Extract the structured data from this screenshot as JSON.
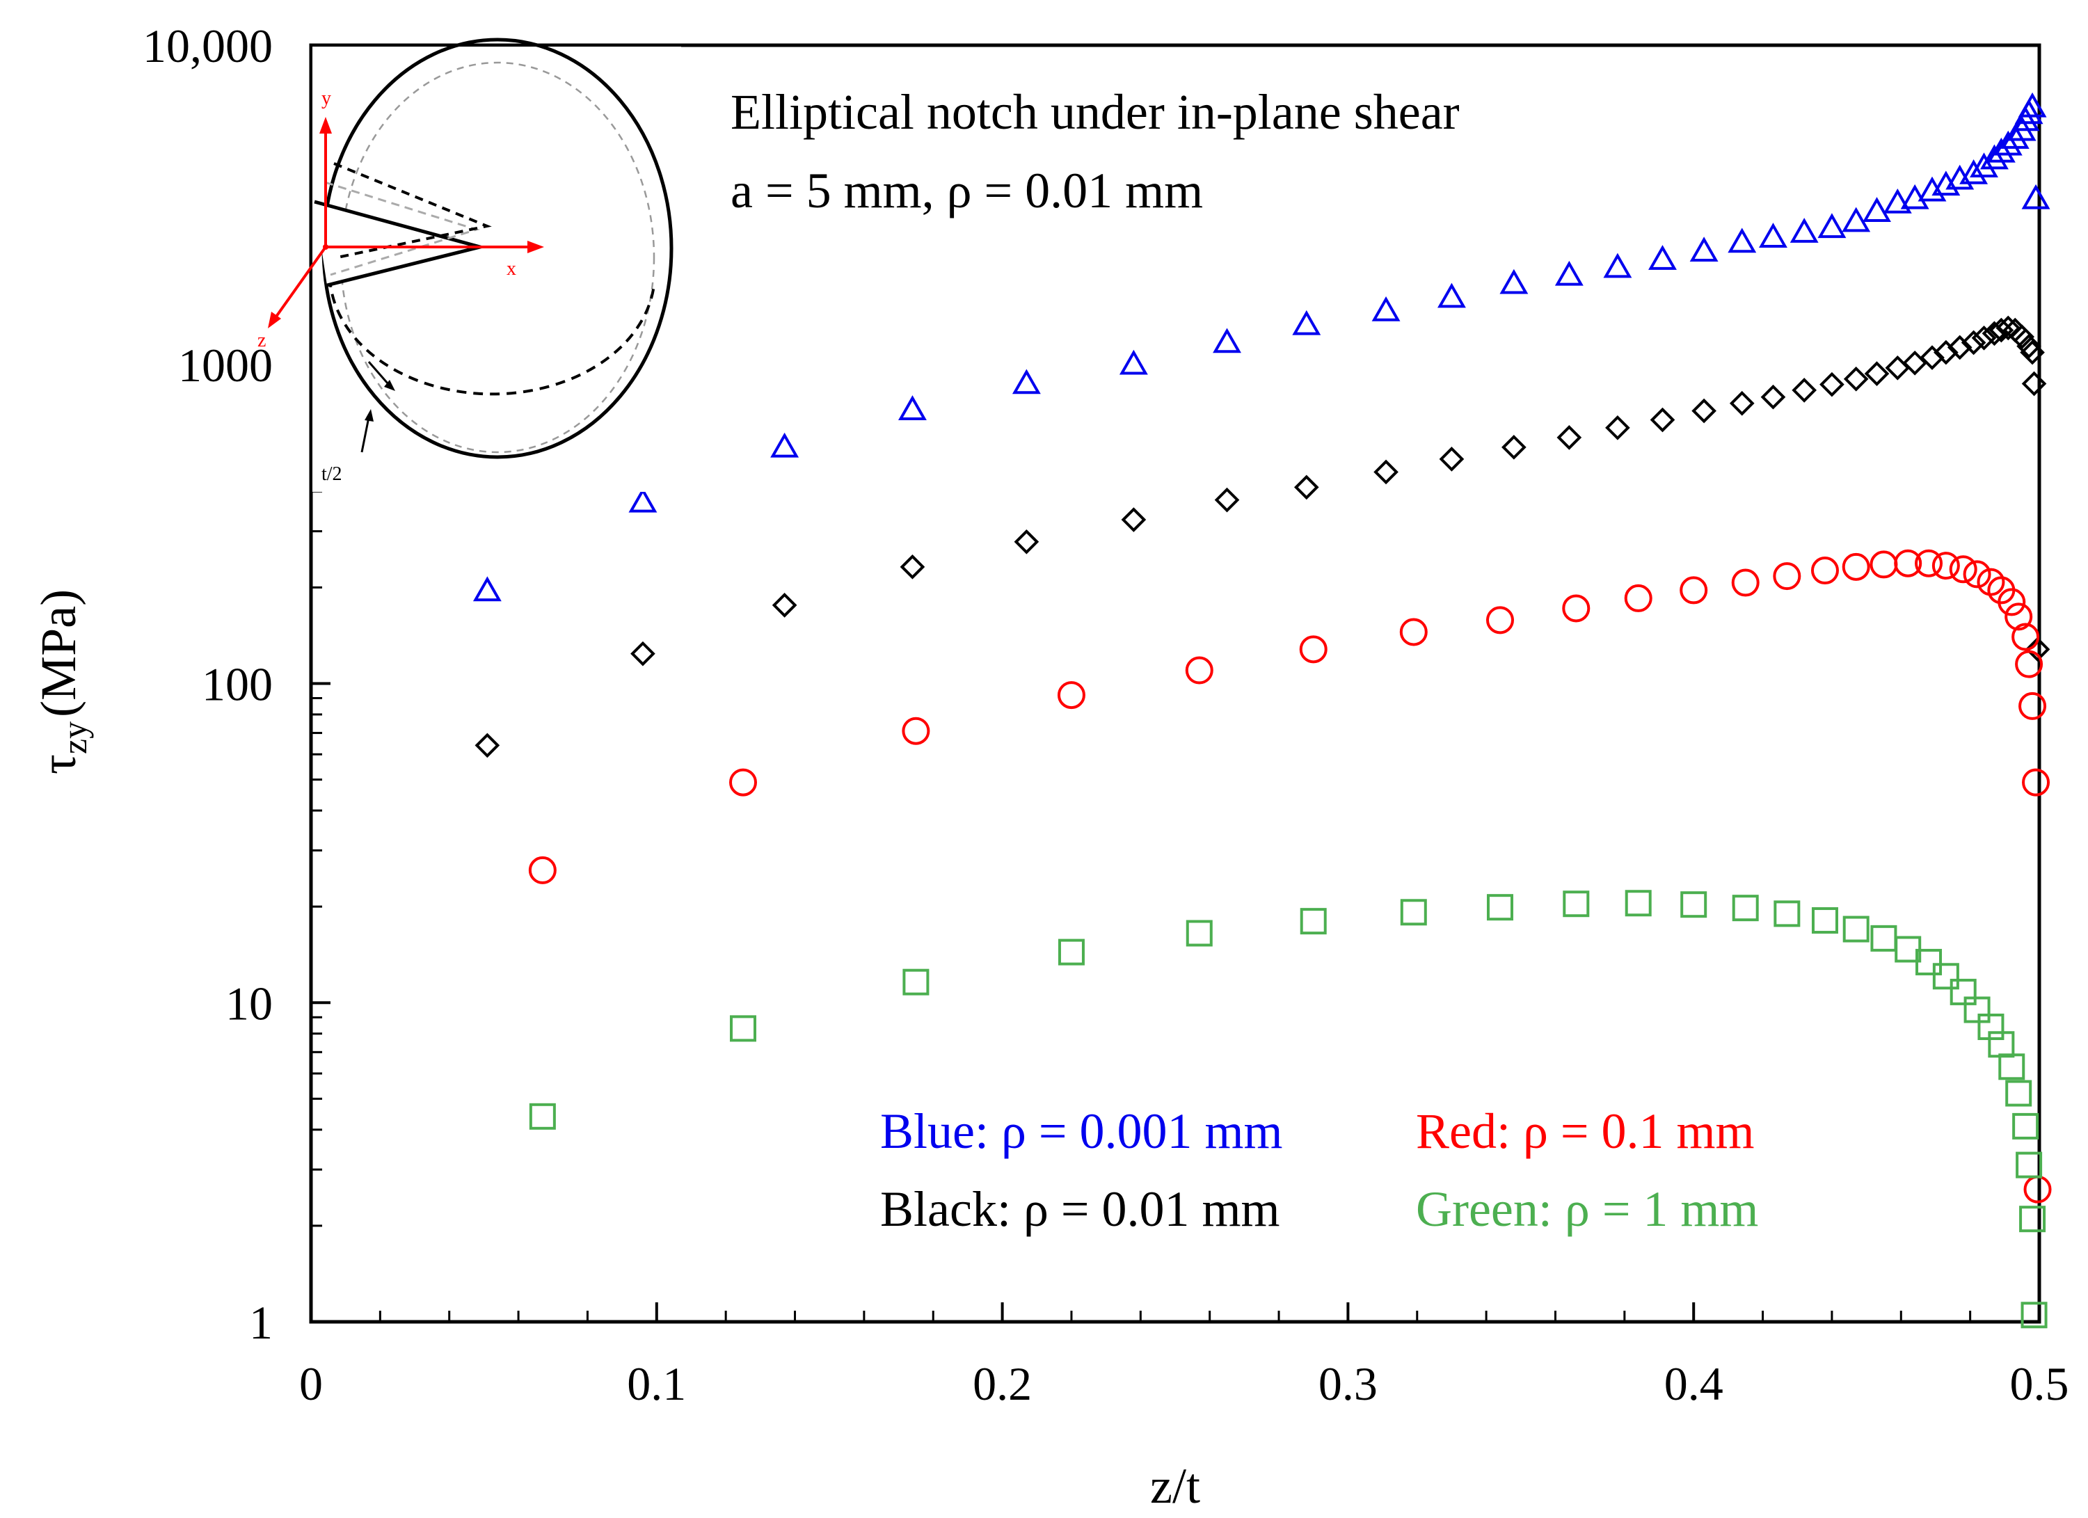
{
  "chart_data": {
    "type": "scatter",
    "title": "",
    "xlabel": "z/t",
    "ylabel": {
      "symbol": "τ",
      "subscript": "zy",
      "unit": "(MPa)"
    },
    "xlim": [
      0,
      0.5
    ],
    "ylim": [
      1,
      10000
    ],
    "yscale": "log",
    "grid": false,
    "x_ticks": [
      "0",
      "0.1",
      "0.2",
      "0.3",
      "0.4",
      "0.5"
    ],
    "x_tick_values": [
      0,
      0.1,
      0.2,
      0.3,
      0.4,
      0.5
    ],
    "x_minor_ticks": [
      0.02,
      0.04,
      0.06,
      0.08,
      0.12,
      0.14,
      0.16,
      0.18,
      0.22,
      0.24,
      0.26,
      0.28,
      0.32,
      0.34,
      0.36,
      0.38,
      0.42,
      0.44,
      0.46,
      0.48
    ],
    "y_ticks": [
      "1",
      "10",
      "100",
      "1000",
      "10,000"
    ],
    "y_tick_values": [
      1,
      10,
      100,
      1000,
      10000
    ],
    "annotations": {
      "line1": "Elliptical notch under in-plane shear",
      "line2": "a = 5 mm, ρ = 0.01 mm"
    },
    "legend": {
      "placement": "bottom-right",
      "blue": "Blue: ρ = 0.001 mm",
      "red": "Red: ρ = 0.1 mm",
      "black": "Black: ρ = 0.01 mm",
      "green": "Green: ρ = 1 mm"
    },
    "series": [
      {
        "name": "Blue: ρ = 0.001 mm",
        "color": "#0000ee",
        "marker": "triangle",
        "points": [
          [
            0.051,
            195
          ],
          [
            0.096,
            370
          ],
          [
            0.137,
            550
          ],
          [
            0.174,
            720
          ],
          [
            0.207,
            870
          ],
          [
            0.238,
            1000
          ],
          [
            0.265,
            1170
          ],
          [
            0.288,
            1330
          ],
          [
            0.311,
            1470
          ],
          [
            0.33,
            1620
          ],
          [
            0.348,
            1790
          ],
          [
            0.364,
            1900
          ],
          [
            0.378,
            2010
          ],
          [
            0.391,
            2130
          ],
          [
            0.403,
            2260
          ],
          [
            0.414,
            2410
          ],
          [
            0.423,
            2500
          ],
          [
            0.432,
            2590
          ],
          [
            0.44,
            2680
          ],
          [
            0.447,
            2800
          ],
          [
            0.453,
            3010
          ],
          [
            0.459,
            3200
          ],
          [
            0.464,
            3300
          ],
          [
            0.469,
            3490
          ],
          [
            0.473,
            3640
          ],
          [
            0.477,
            3800
          ],
          [
            0.481,
            3950
          ],
          [
            0.484,
            4150
          ],
          [
            0.487,
            4400
          ],
          [
            0.489,
            4620
          ],
          [
            0.491,
            4860
          ],
          [
            0.493,
            5100
          ],
          [
            0.495,
            5400
          ],
          [
            0.496,
            5800
          ],
          [
            0.497,
            6100
          ],
          [
            0.498,
            6400
          ],
          [
            0.499,
            3300
          ]
        ]
      },
      {
        "name": "Black: ρ = 0.01 mm",
        "color": "#000000",
        "marker": "diamond",
        "points": [
          [
            0.051,
            64
          ],
          [
            0.096,
            124
          ],
          [
            0.137,
            176
          ],
          [
            0.174,
            232
          ],
          [
            0.207,
            278
          ],
          [
            0.238,
            326
          ],
          [
            0.265,
            376
          ],
          [
            0.288,
            412
          ],
          [
            0.311,
            460
          ],
          [
            0.33,
            505
          ],
          [
            0.348,
            550
          ],
          [
            0.364,
            590
          ],
          [
            0.378,
            633
          ],
          [
            0.391,
            670
          ],
          [
            0.403,
            715
          ],
          [
            0.414,
            755
          ],
          [
            0.423,
            790
          ],
          [
            0.432,
            830
          ],
          [
            0.44,
            865
          ],
          [
            0.447,
            900
          ],
          [
            0.453,
            935
          ],
          [
            0.459,
            975
          ],
          [
            0.464,
            1010
          ],
          [
            0.469,
            1050
          ],
          [
            0.473,
            1090
          ],
          [
            0.477,
            1130
          ],
          [
            0.481,
            1170
          ],
          [
            0.484,
            1210
          ],
          [
            0.487,
            1250
          ],
          [
            0.489,
            1280
          ],
          [
            0.491,
            1300
          ],
          [
            0.493,
            1280
          ],
          [
            0.495,
            1220
          ],
          [
            0.497,
            1140
          ],
          [
            0.498,
            1090
          ],
          [
            0.4985,
            870
          ],
          [
            0.4995,
            128
          ]
        ]
      },
      {
        "name": "Red: ρ = 0.1 mm",
        "color": "#ff0000",
        "marker": "circle",
        "points": [
          [
            0.067,
            26
          ],
          [
            0.125,
            49
          ],
          [
            0.175,
            71
          ],
          [
            0.22,
            92
          ],
          [
            0.257,
            110
          ],
          [
            0.29,
            128
          ],
          [
            0.319,
            145
          ],
          [
            0.344,
            158
          ],
          [
            0.366,
            172
          ],
          [
            0.384,
            185
          ],
          [
            0.4,
            196
          ],
          [
            0.415,
            207
          ],
          [
            0.427,
            217
          ],
          [
            0.438,
            226
          ],
          [
            0.447,
            232
          ],
          [
            0.455,
            236
          ],
          [
            0.462,
            238
          ],
          [
            0.468,
            238
          ],
          [
            0.473,
            234
          ],
          [
            0.478,
            228
          ],
          [
            0.482,
            220
          ],
          [
            0.486,
            208
          ],
          [
            0.489,
            196
          ],
          [
            0.492,
            180
          ],
          [
            0.494,
            162
          ],
          [
            0.496,
            140
          ],
          [
            0.497,
            115
          ],
          [
            0.498,
            85
          ],
          [
            0.499,
            49
          ],
          [
            0.4995,
            2.6
          ]
        ]
      },
      {
        "name": "Green: ρ = 1 mm",
        "color": "#4caf50",
        "marker": "square",
        "points": [
          [
            0.067,
            4.4
          ],
          [
            0.125,
            8.3
          ],
          [
            0.175,
            11.6
          ],
          [
            0.22,
            14.4
          ],
          [
            0.257,
            16.5
          ],
          [
            0.29,
            18
          ],
          [
            0.319,
            19.2
          ],
          [
            0.344,
            19.9
          ],
          [
            0.366,
            20.4
          ],
          [
            0.384,
            20.5
          ],
          [
            0.4,
            20.3
          ],
          [
            0.415,
            19.8
          ],
          [
            0.427,
            19
          ],
          [
            0.438,
            18.1
          ],
          [
            0.447,
            17
          ],
          [
            0.455,
            15.9
          ],
          [
            0.462,
            14.7
          ],
          [
            0.468,
            13.4
          ],
          [
            0.473,
            12.1
          ],
          [
            0.478,
            10.8
          ],
          [
            0.482,
            9.5
          ],
          [
            0.486,
            8.4
          ],
          [
            0.489,
            7.4
          ],
          [
            0.492,
            6.3
          ],
          [
            0.494,
            5.2
          ],
          [
            0.496,
            4.1
          ],
          [
            0.497,
            3.1
          ],
          [
            0.498,
            2.1
          ],
          [
            0.4985,
            1.05
          ]
        ]
      }
    ]
  },
  "inset": {
    "axis_x": "x",
    "axis_y": "y",
    "axis_z": "z",
    "dimension": "t/2",
    "axis_color": "#ff0000"
  }
}
